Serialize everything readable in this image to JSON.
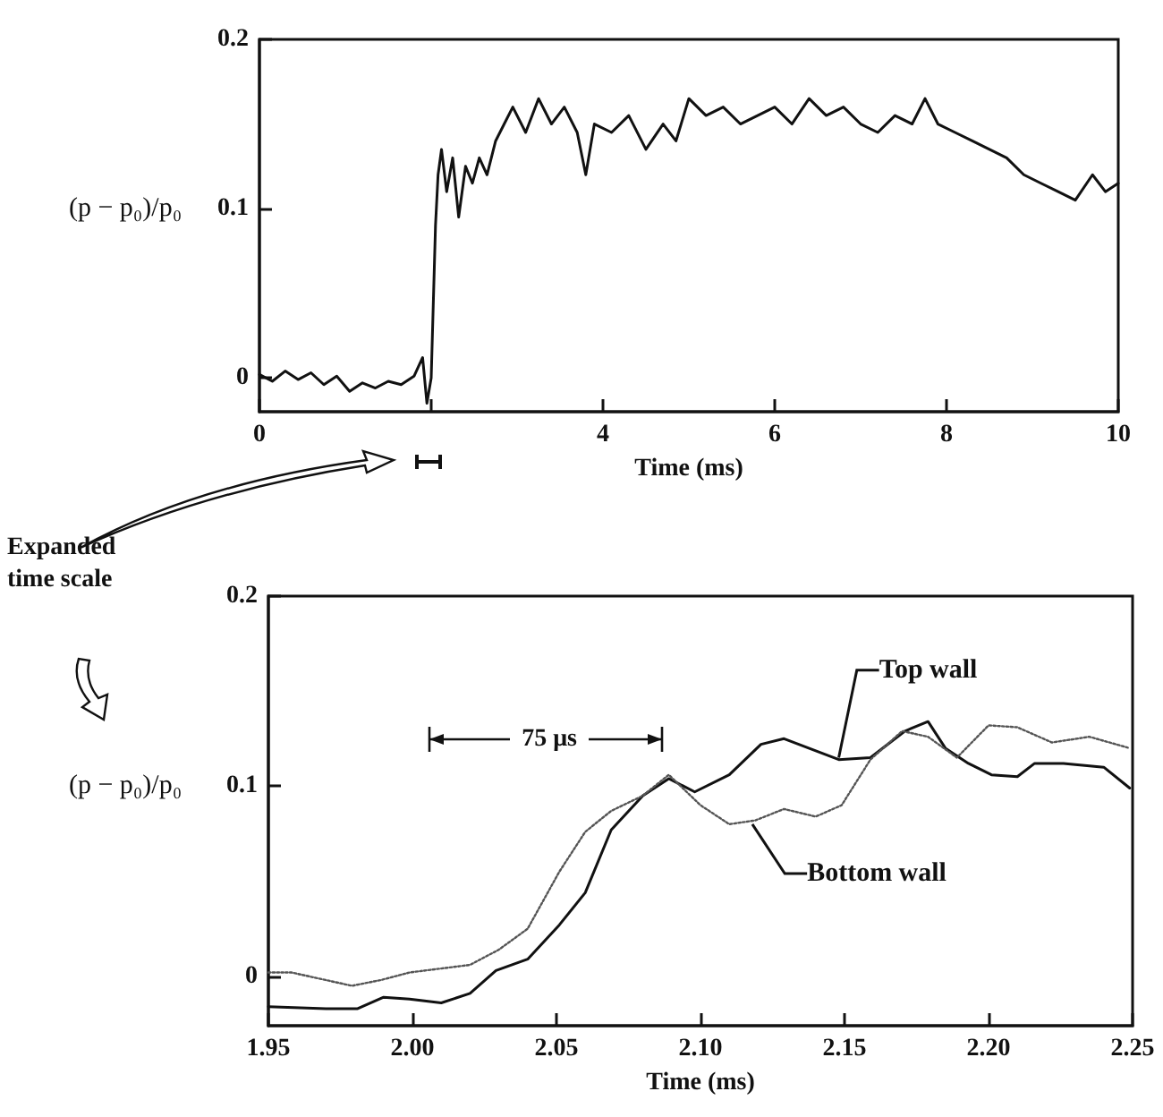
{
  "chart_data": [
    {
      "type": "line",
      "xlabel": "Time (ms)",
      "ylabel": "(p − p₀)/p₀",
      "xlim": [
        0,
        10
      ],
      "xticks": [
        0,
        {
          "value": 2,
          "label": null
        },
        4,
        6,
        8,
        10
      ],
      "ylim": [
        -0.02,
        0.2
      ],
      "yticks": [
        0,
        0.1,
        0.2
      ],
      "grid": false,
      "legend": false,
      "series": [
        {
          "color": "#111111",
          "line_style": "solid",
          "x": [
            0,
            0.15,
            0.3,
            0.45,
            0.6,
            0.75,
            0.9,
            1.05,
            1.2,
            1.35,
            1.5,
            1.65,
            1.8,
            1.9,
            1.95,
            2.0,
            2.05,
            2.08,
            2.12,
            2.18,
            2.25,
            2.32,
            2.4,
            2.48,
            2.56,
            2.65,
            2.75,
            2.85,
            2.95,
            3.1,
            3.25,
            3.4,
            3.55,
            3.7,
            3.8,
            3.9,
            4.1,
            4.3,
            4.5,
            4.7,
            4.85,
            5.0,
            5.2,
            5.4,
            5.6,
            5.8,
            6.0,
            6.2,
            6.4,
            6.6,
            6.8,
            7.0,
            7.2,
            7.4,
            7.6,
            7.75,
            7.9,
            8.1,
            8.3,
            8.5,
            8.7,
            8.9,
            9.1,
            9.3,
            9.5,
            9.7,
            9.85,
            10
          ],
          "values": [
            0.002,
            -0.002,
            0.004,
            -0.001,
            0.003,
            -0.004,
            0.001,
            -0.008,
            -0.003,
            -0.006,
            -0.002,
            -0.004,
            0.001,
            0.012,
            -0.015,
            0.0,
            0.09,
            0.12,
            0.135,
            0.11,
            0.13,
            0.095,
            0.125,
            0.115,
            0.13,
            0.12,
            0.14,
            0.15,
            0.16,
            0.145,
            0.165,
            0.15,
            0.16,
            0.145,
            0.12,
            0.15,
            0.145,
            0.155,
            0.135,
            0.15,
            0.14,
            0.165,
            0.155,
            0.16,
            0.15,
            0.155,
            0.16,
            0.15,
            0.165,
            0.155,
            0.16,
            0.15,
            0.145,
            0.155,
            0.15,
            0.165,
            0.15,
            0.145,
            0.14,
            0.135,
            0.13,
            0.12,
            0.115,
            0.11,
            0.105,
            0.12,
            0.11,
            0.115
          ]
        }
      ]
    },
    {
      "type": "line",
      "xlabel": "Time (ms)",
      "ylabel": "(p − p₀)/p₀",
      "xlim": [
        1.95,
        2.25
      ],
      "xticks": [
        1.95,
        {
          "value": 2,
          "label": "2.00"
        },
        2.05,
        {
          "value": 2.1,
          "label": "2.10"
        },
        2.15,
        {
          "value": 2.2,
          "label": "2.20"
        },
        2.25
      ],
      "ylim": [
        -0.026,
        0.2
      ],
      "yticks": [
        0,
        0.1,
        0.2
      ],
      "grid": false,
      "legend": false,
      "annotations": [
        "Expanded time scale",
        "75 μs"
      ],
      "series": [
        {
          "name": "Top wall",
          "color": "#111111",
          "line_style": "solid",
          "x": [
            1.95,
            1.97,
            1.981,
            1.99,
            1.999,
            2.01,
            2.02,
            2.029,
            2.04,
            2.051,
            2.06,
            2.069,
            2.08,
            2.089,
            2.098,
            2.11,
            2.121,
            2.129,
            2.148,
            2.159,
            2.171,
            2.179,
            2.185,
            2.193,
            2.201,
            2.21,
            2.216,
            2.226,
            2.24,
            2.249
          ],
          "values": [
            -0.016,
            -0.017,
            -0.017,
            -0.011,
            -0.012,
            -0.014,
            -0.009,
            0.003,
            0.009,
            0.027,
            0.044,
            0.077,
            0.095,
            0.104,
            0.097,
            0.106,
            0.122,
            0.125,
            0.114,
            0.115,
            0.129,
            0.134,
            0.12,
            0.112,
            0.106,
            0.105,
            0.112,
            0.112,
            0.11,
            0.099
          ]
        },
        {
          "name": "Bottom wall",
          "color": "#555555",
          "line_style": "dotted",
          "x": [
            1.95,
            1.958,
            1.979,
            1.989,
            1.999,
            2.02,
            2.03,
            2.04,
            2.051,
            2.06,
            2.069,
            2.08,
            2.089,
            2.1,
            2.11,
            2.119,
            2.129,
            2.14,
            2.149,
            2.159,
            2.17,
            2.179,
            2.189,
            2.2,
            2.21,
            2.222,
            2.235,
            2.249
          ],
          "values": [
            0.002,
            0.002,
            -0.005,
            -0.002,
            0.002,
            0.006,
            0.014,
            0.025,
            0.055,
            0.076,
            0.087,
            0.095,
            0.106,
            0.09,
            0.08,
            0.082,
            0.088,
            0.084,
            0.09,
            0.114,
            0.129,
            0.126,
            0.115,
            0.132,
            0.131,
            0.123,
            0.126,
            0.12
          ]
        }
      ]
    }
  ]
}
